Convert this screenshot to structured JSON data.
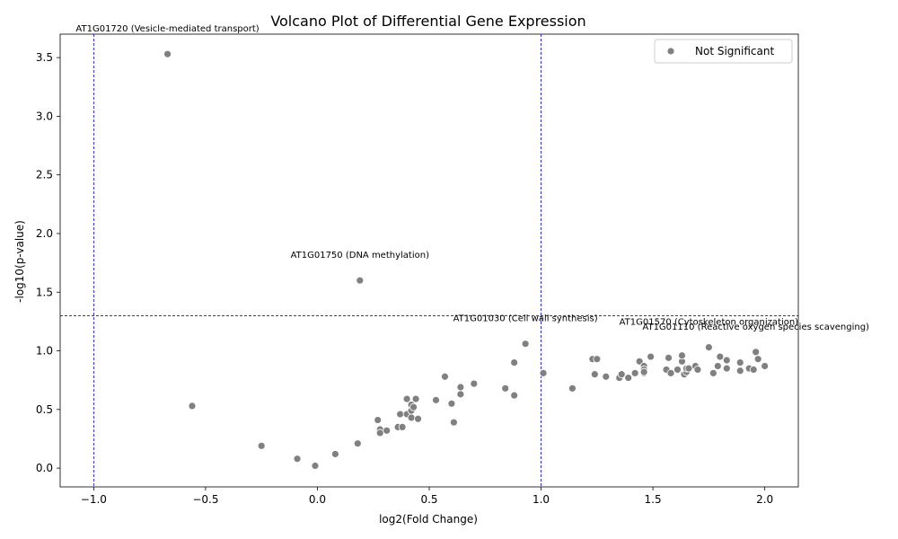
{
  "chart_data": {
    "type": "scatter",
    "title": "Volcano Plot of Differential Gene Expression",
    "xlabel": "log2(Fold Change)",
    "ylabel": "-log10(p-value)",
    "xlim": [
      -1.15,
      2.15
    ],
    "ylim": [
      -0.16,
      3.7
    ],
    "xticks": [
      -1.0,
      -0.5,
      0.0,
      0.5,
      1.0,
      1.5,
      2.0
    ],
    "xtick_labels": [
      "−1.0",
      "−0.5",
      "0.0",
      "0.5",
      "1.0",
      "1.5",
      "2.0"
    ],
    "yticks": [
      0.0,
      0.5,
      1.0,
      1.5,
      2.0,
      2.5,
      3.0,
      3.5
    ],
    "ytick_labels": [
      "0.0",
      "0.5",
      "1.0",
      "1.5",
      "2.0",
      "2.5",
      "3.0",
      "3.5"
    ],
    "grid": false,
    "legend": {
      "position": "top-right",
      "entries": [
        {
          "label": "Not Significant",
          "color": "#808080"
        }
      ]
    },
    "point_color": "#808080",
    "threshold_lines": [
      {
        "orientation": "vertical",
        "value": -1.0,
        "color": "#0000cc"
      },
      {
        "orientation": "vertical",
        "value": 1.0,
        "color": "#0000cc"
      },
      {
        "orientation": "horizontal",
        "value": 1.3,
        "color": "#000000"
      }
    ],
    "annotations": [
      {
        "text": "AT1G01720 (Vesicle-mediated transport)",
        "x": -0.67,
        "y": 3.53
      },
      {
        "text": "AT1G01750 (DNA methylation)",
        "x": 0.19,
        "y": 1.6
      },
      {
        "text": "AT1G01030 (Cell wall synthesis)",
        "x": 0.93,
        "y": 1.06
      },
      {
        "text": "AT1G01570 (Cytoskeleton organization)",
        "x": 1.75,
        "y": 1.03
      },
      {
        "text": "AT1G01110 (Reactive oxygen species scavenging)",
        "x": 1.96,
        "y": 0.99
      }
    ],
    "series": [
      {
        "name": "Not Significant",
        "points": [
          [
            -0.67,
            3.53
          ],
          [
            0.19,
            1.6
          ],
          [
            0.93,
            1.06
          ],
          [
            1.75,
            1.03
          ],
          [
            1.96,
            0.99
          ],
          [
            -0.56,
            0.53
          ],
          [
            -0.25,
            0.19
          ],
          [
            -0.09,
            0.08
          ],
          [
            -0.01,
            0.02
          ],
          [
            0.08,
            0.12
          ],
          [
            0.18,
            0.21
          ],
          [
            0.27,
            0.41
          ],
          [
            0.28,
            0.33
          ],
          [
            0.28,
            0.3
          ],
          [
            0.31,
            0.32
          ],
          [
            0.36,
            0.35
          ],
          [
            0.38,
            0.35
          ],
          [
            0.37,
            0.46
          ],
          [
            0.4,
            0.46
          ],
          [
            0.4,
            0.59
          ],
          [
            0.42,
            0.43
          ],
          [
            0.42,
            0.49
          ],
          [
            0.42,
            0.54
          ],
          [
            0.43,
            0.52
          ],
          [
            0.44,
            0.59
          ],
          [
            0.45,
            0.42
          ],
          [
            0.53,
            0.58
          ],
          [
            0.57,
            0.78
          ],
          [
            0.6,
            0.55
          ],
          [
            0.61,
            0.39
          ],
          [
            0.64,
            0.63
          ],
          [
            0.64,
            0.69
          ],
          [
            0.7,
            0.72
          ],
          [
            0.84,
            0.68
          ],
          [
            0.88,
            0.9
          ],
          [
            0.88,
            0.62
          ],
          [
            1.01,
            0.81
          ],
          [
            1.14,
            0.68
          ],
          [
            1.23,
            0.93
          ],
          [
            1.24,
            0.8
          ],
          [
            1.25,
            0.93
          ],
          [
            1.29,
            0.78
          ],
          [
            1.35,
            0.77
          ],
          [
            1.36,
            0.8
          ],
          [
            1.39,
            0.77
          ],
          [
            1.42,
            0.81
          ],
          [
            1.44,
            0.91
          ],
          [
            1.46,
            0.87
          ],
          [
            1.46,
            0.84
          ],
          [
            1.46,
            0.81
          ],
          [
            1.46,
            0.82
          ],
          [
            1.49,
            0.95
          ],
          [
            1.56,
            0.84
          ],
          [
            1.57,
            0.94
          ],
          [
            1.58,
            0.81
          ],
          [
            1.61,
            0.84
          ],
          [
            1.63,
            0.91
          ],
          [
            1.63,
            0.96
          ],
          [
            1.64,
            0.8
          ],
          [
            1.65,
            0.82
          ],
          [
            1.65,
            0.85
          ],
          [
            1.66,
            0.85
          ],
          [
            1.69,
            0.87
          ],
          [
            1.7,
            0.84
          ],
          [
            1.77,
            0.81
          ],
          [
            1.79,
            0.87
          ],
          [
            1.8,
            0.95
          ],
          [
            1.83,
            0.92
          ],
          [
            1.83,
            0.85
          ],
          [
            1.89,
            0.9
          ],
          [
            1.89,
            0.83
          ],
          [
            1.93,
            0.85
          ],
          [
            1.95,
            0.84
          ],
          [
            1.97,
            0.93
          ],
          [
            2.0,
            0.87
          ]
        ]
      }
    ]
  }
}
